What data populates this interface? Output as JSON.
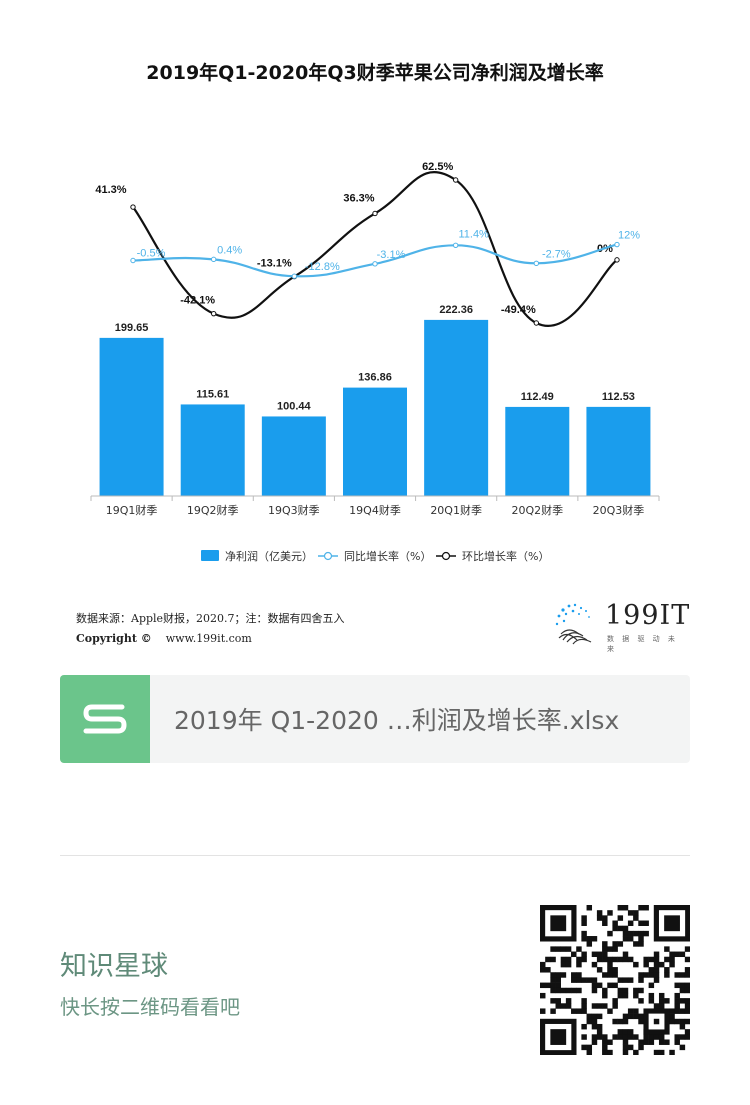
{
  "page": {
    "source_text": "数据来源：Apple财报，2020.7；注：数据有四舍五入",
    "copyright_text": "Copyright ©",
    "website": "www.199it.com",
    "logo_text": "199IT",
    "logo_tagline": "数 据 驱 动 未 来",
    "attachment_name": "2019年 Q1-2020 …利润及增长率.xlsx",
    "promo_title": "知识星球",
    "promo_subtitle": "快长按二维码看看吧",
    "qr_icon": "qr-code-icon",
    "file_icon": "spreadsheet-file-icon",
    "colors": {
      "accent_green": "#6bc58b",
      "bar_blue": "#1a9ded",
      "yoy_line": "#4fb3e8",
      "qoq_line": "#111111"
    }
  },
  "chart_data": {
    "type": "bar",
    "title": "2019年Q1-2020年Q3财季苹果公司净利润及增长率",
    "categories": [
      "19Q1财季",
      "19Q2财季",
      "19Q3财季",
      "19Q4财季",
      "20Q1财季",
      "20Q2财季",
      "20Q3财季"
    ],
    "series": [
      {
        "name": "净利润（亿美元）",
        "type": "bar",
        "values": [
          199.65,
          115.61,
          100.44,
          136.86,
          222.36,
          112.49,
          112.53
        ],
        "labels": [
          "199.65",
          "115.61",
          "100.44",
          "136.86",
          "222.36",
          "112.49",
          "112.53"
        ]
      },
      {
        "name": "同比增长率（%）",
        "type": "line",
        "values": [
          -0.5,
          0.4,
          -12.8,
          -3.1,
          11.4,
          -2.7,
          12
        ],
        "labels": [
          "-0.5%",
          "0.4%",
          "-12.8%",
          "-3.1%",
          "11.4%",
          "-2.7%",
          "12%"
        ]
      },
      {
        "name": "环比增长率（%）",
        "type": "line",
        "values": [
          41.3,
          -42.1,
          -13.1,
          36.3,
          62.5,
          -49.4,
          0
        ],
        "labels": [
          "41.3%",
          "-42.1%",
          "-13.1%",
          "36.3%",
          "62.5%",
          "-49.4%",
          "0%"
        ]
      }
    ],
    "legend_position": "bottom",
    "grid": false
  }
}
